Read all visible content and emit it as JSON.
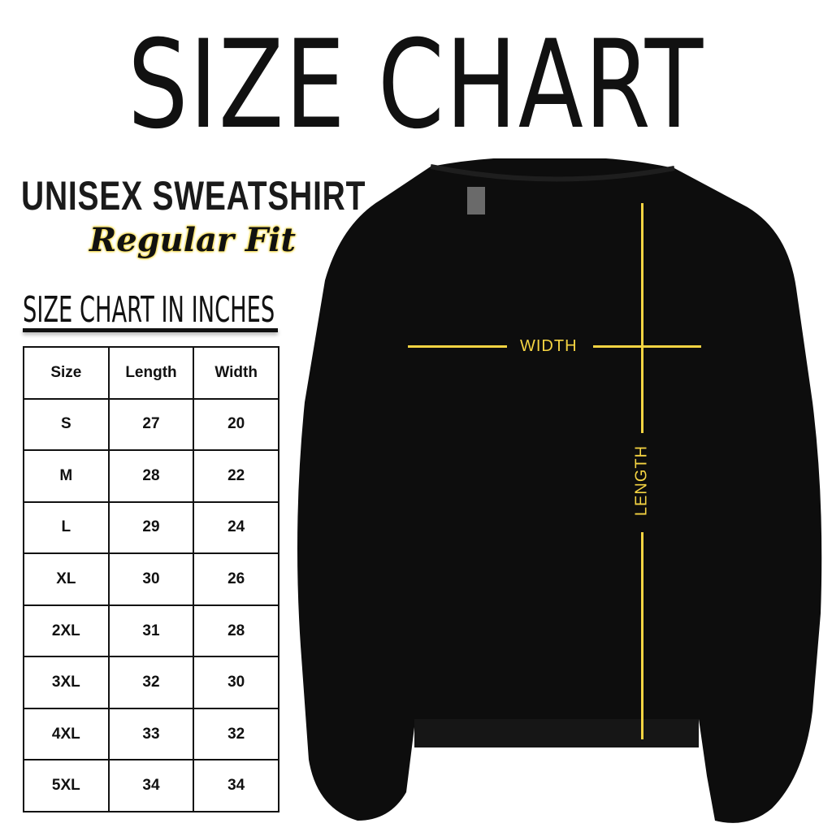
{
  "title": "SIZE CHART",
  "product": "UNISEX SWEATSHIRT",
  "fit": "Regular Fit",
  "table_heading": "SIZE CHART IN INCHES",
  "table": {
    "headers": [
      "Size",
      "Length",
      "Width"
    ],
    "rows": [
      [
        "S",
        "27",
        "20"
      ],
      [
        "M",
        "28",
        "22"
      ],
      [
        "L",
        "29",
        "24"
      ],
      [
        "XL",
        "30",
        "26"
      ],
      [
        "2XL",
        "31",
        "28"
      ],
      [
        "3XL",
        "32",
        "30"
      ],
      [
        "4XL",
        "33",
        "32"
      ],
      [
        "5XL",
        "34",
        "34"
      ]
    ]
  },
  "diagram": {
    "width_label": "WIDTH",
    "length_label": "LENGTH",
    "line_color": "#f5d442",
    "garment_color": "#0d0d0d"
  }
}
